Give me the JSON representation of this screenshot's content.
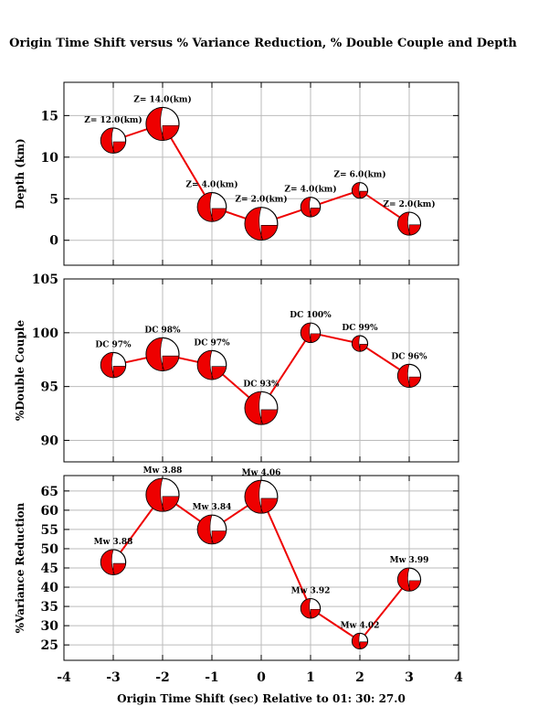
{
  "chart_data": [
    {
      "type": "line",
      "title": "Origin Time Shift versus % Variance Reduction, % Double Couple and Depth",
      "ylabel": "Depth (km)",
      "ylim": [
        -3,
        19
      ],
      "yticks": [
        0,
        5,
        10,
        15
      ],
      "x": [
        -3,
        -2,
        -1,
        0,
        1,
        2,
        3
      ],
      "values": [
        12,
        14,
        4,
        2,
        4,
        6,
        2
      ],
      "labels": [
        "Z= 12.0(km)",
        "Z= 14.0(km)",
        "Z= 4.0(km)",
        "Z= 2.0(km)",
        "Z= 4.0(km)",
        "Z= 6.0(km)",
        "Z= 2.0(km)"
      ]
    },
    {
      "type": "line",
      "ylabel": "%Double Couple",
      "ylim": [
        88,
        105
      ],
      "yticks": [
        90,
        95,
        100,
        105
      ],
      "x": [
        -3,
        -2,
        -1,
        0,
        1,
        2,
        3
      ],
      "values": [
        97,
        98,
        97,
        93,
        100,
        99,
        96
      ],
      "labels": [
        "DC 97%",
        "DC 98%",
        "DC 97%",
        "DC 93%",
        "DC 100%",
        "DC 99%",
        "DC 96%"
      ]
    },
    {
      "type": "line",
      "ylabel": "%Variance Reduction",
      "ylim": [
        21,
        69
      ],
      "yticks": [
        25,
        30,
        35,
        40,
        45,
        50,
        55,
        60,
        65
      ],
      "x": [
        -3,
        -2,
        -1,
        0,
        1,
        2,
        3
      ],
      "values": [
        46.5,
        64,
        55,
        63.5,
        34.5,
        26,
        42
      ],
      "labels": [
        "Mw 3.88",
        "Mw 3.88",
        "Mw 3.84",
        "Mw 4.06",
        "Mw 3.92",
        "Mw 4.02",
        "Mw 3.99"
      ]
    }
  ],
  "xaxis": {
    "xlim": [
      -4,
      4
    ],
    "xticks": [
      -4,
      -3,
      -2,
      -1,
      0,
      1,
      2,
      3,
      4
    ],
    "xlabel": "Origin Time Shift (sec) Relative to 01: 30: 27.0"
  },
  "colors": {
    "line": "#ee0000",
    "fill": "#ee0000"
  }
}
